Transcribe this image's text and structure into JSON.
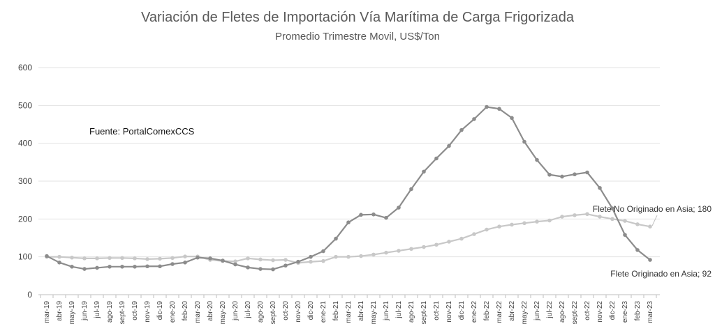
{
  "chart_data": {
    "type": "line",
    "title": "Variación de Fletes de Importación Vía Marítima de Carga Frigorizada",
    "subtitle": "Promedio Trimestre Movil, US$/Ton",
    "source_note": "Fuente: PortalComexCCS",
    "xlabel": "",
    "ylabel": "",
    "ylim": [
      0,
      600
    ],
    "yticks": [
      0,
      100,
      200,
      300,
      400,
      500,
      600
    ],
    "grid": true,
    "categories": [
      "mar-19",
      "abr-19",
      "may-19",
      "jun-19",
      "jul-19",
      "ago-19",
      "sept-19",
      "oct-19",
      "nov-19",
      "dic-19",
      "ene-20",
      "feb-20",
      "mar-20",
      "abr-20",
      "may-20",
      "jun-20",
      "jul-20",
      "ago-20",
      "sept-20",
      "oct-20",
      "nov-20",
      "dic-20",
      "ene-21",
      "feb-21",
      "mar-21",
      "abr-21",
      "may-21",
      "jun-21",
      "jul-21",
      "ago-21",
      "sept-21",
      "oct-21",
      "nov-21",
      "dic-21",
      "ene-22",
      "feb-22",
      "mar-22",
      "abr-22",
      "may-22",
      "jun-22",
      "jul-22",
      "ago-22",
      "sept-22",
      "oct-22",
      "nov-22",
      "dic-22",
      "ene-23",
      "feb-23",
      "mar-23"
    ],
    "series": [
      {
        "name": "Flete Originado en Asia",
        "label": "Flete Originado en Asia; 92",
        "color": "#8c8c8c",
        "values": [
          102,
          85,
          74,
          68,
          71,
          74,
          74,
          74,
          75,
          75,
          81,
          85,
          98,
          96,
          90,
          80,
          72,
          68,
          67,
          77,
          87,
          100,
          115,
          148,
          191,
          211,
          212,
          203,
          230,
          279,
          325,
          360,
          393,
          435,
          464,
          496,
          491,
          467,
          404,
          356,
          317,
          312,
          318,
          323,
          282,
          228,
          158,
          118,
          92
        ]
      },
      {
        "name": "Flete No Originado en Asia",
        "label": "Flete No Originado en Asia; 180",
        "color": "#c8c8c8",
        "values": [
          100,
          100,
          98,
          96,
          96,
          97,
          97,
          96,
          94,
          95,
          97,
          101,
          101,
          92,
          89,
          88,
          96,
          93,
          91,
          92,
          84,
          87,
          89,
          100,
          100,
          102,
          106,
          111,
          116,
          121,
          126,
          132,
          140,
          148,
          160,
          172,
          180,
          185,
          189,
          193,
          196,
          206,
          210,
          213,
          206,
          200,
          195,
          186,
          180
        ]
      }
    ]
  }
}
